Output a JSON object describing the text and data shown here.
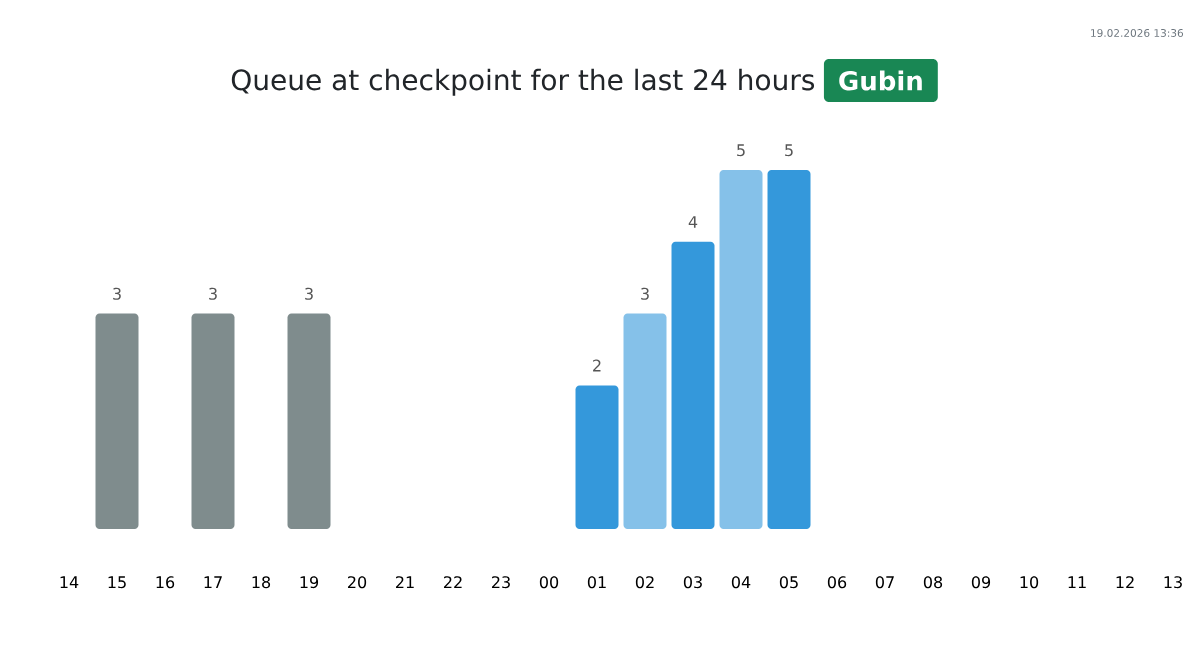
{
  "chart_data": {
    "type": "bar",
    "title": "Queue at checkpoint for the last 24 hours",
    "subtitle": "Gubin",
    "annotations": [
      "19.02.2026 13:36"
    ],
    "categories": [
      "14",
      "15",
      "16",
      "17",
      "18",
      "19",
      "20",
      "21",
      "22",
      "23",
      "00",
      "01",
      "02",
      "03",
      "04",
      "05",
      "06",
      "07",
      "08",
      "09",
      "10",
      "11",
      "12",
      "13"
    ],
    "values": [
      null,
      3,
      null,
      3,
      null,
      3,
      null,
      null,
      null,
      null,
      null,
      2,
      3,
      4,
      5,
      5,
      null,
      null,
      null,
      null,
      null,
      null,
      null,
      null
    ],
    "colors": [
      null,
      "#7f8c8d",
      null,
      "#7f8c8d",
      null,
      "#7f8c8d",
      null,
      null,
      null,
      null,
      null,
      "#3498db",
      "#85c1e9",
      "#3498db",
      "#85c1e9",
      "#3498db",
      null,
      null,
      null,
      null,
      null,
      null,
      null,
      null
    ],
    "data_labels": true
  }
}
